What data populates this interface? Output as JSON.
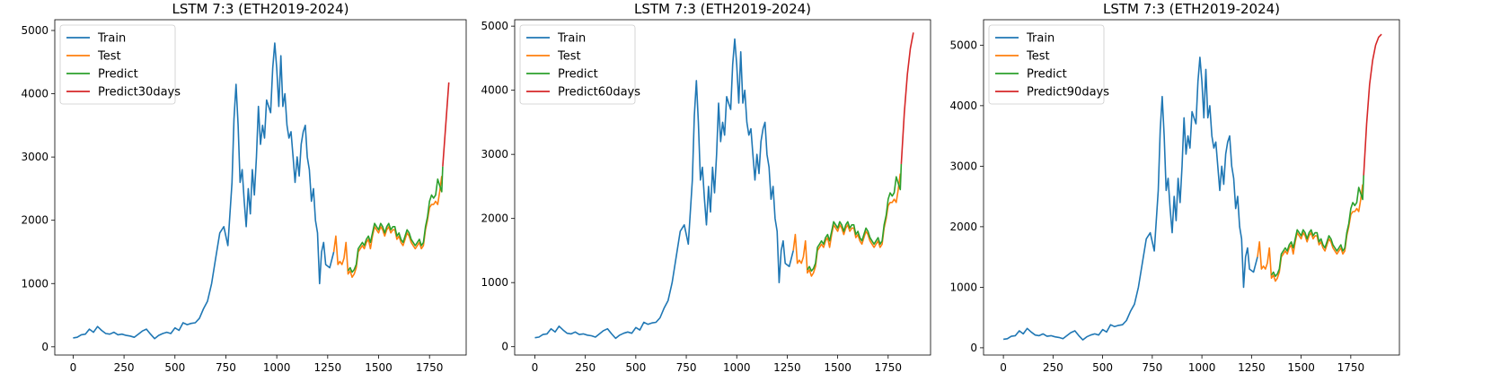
{
  "colors": {
    "train": "#1f77b4",
    "test": "#ff7f0e",
    "predict": "#2ca02c",
    "forecast": "#d62728"
  },
  "chart_data": [
    {
      "type": "line",
      "title": "LSTM 7:3 (ETH2019-2024)",
      "xlim": [
        -90,
        1930
      ],
      "ylim": [
        -130,
        5170
      ],
      "xticks": [
        0,
        250,
        500,
        750,
        1000,
        1250,
        1500,
        1750
      ],
      "yticks": [
        0,
        1000,
        2000,
        3000,
        4000,
        5000
      ],
      "legend": {
        "position": "top-left",
        "entries": [
          "Train",
          "Test",
          "Predict",
          "Predict30days"
        ]
      },
      "grid": false,
      "forecast": {
        "x": [
          1815,
          1825,
          1835,
          1845
        ],
        "y": [
          2850,
          3300,
          3750,
          4180
        ]
      }
    },
    {
      "type": "line",
      "title": "LSTM 7:3 (ETH2019-2024)",
      "xlim": [
        -100,
        1960
      ],
      "ylim": [
        -130,
        5100
      ],
      "xticks": [
        0,
        250,
        500,
        750,
        1000,
        1250,
        1500,
        1750
      ],
      "yticks": [
        0,
        1000,
        2000,
        3000,
        4000,
        5000
      ],
      "legend": {
        "position": "top-left",
        "entries": [
          "Train",
          "Test",
          "Predict",
          "Predict60days"
        ]
      },
      "grid": false,
      "forecast": {
        "x": [
          1815,
          1830,
          1845,
          1860,
          1875
        ],
        "y": [
          2850,
          3650,
          4250,
          4650,
          4900
        ]
      }
    },
    {
      "type": "line",
      "title": "LSTM 7:3 (ETH2019-2024)",
      "xlim": [
        -100,
        1995
      ],
      "ylim": [
        -120,
        5420
      ],
      "xticks": [
        0,
        250,
        500,
        750,
        1000,
        1250,
        1500,
        1750
      ],
      "yticks": [
        0,
        1000,
        2000,
        3000,
        4000,
        5000
      ],
      "legend": {
        "position": "top-left",
        "entries": [
          "Train",
          "Test",
          "Predict",
          "Predict90days"
        ]
      },
      "grid": false,
      "forecast": {
        "x": [
          1815,
          1830,
          1845,
          1860,
          1875,
          1890,
          1905
        ],
        "y": [
          2850,
          3700,
          4350,
          4750,
          5000,
          5130,
          5180
        ]
      }
    }
  ],
  "series_data": {
    "train": {
      "x": [
        0,
        20,
        40,
        60,
        80,
        100,
        120,
        140,
        160,
        180,
        200,
        220,
        240,
        260,
        280,
        300,
        320,
        340,
        360,
        380,
        400,
        420,
        440,
        460,
        480,
        500,
        520,
        540,
        560,
        580,
        600,
        620,
        640,
        660,
        680,
        700,
        720,
        740,
        760,
        780,
        790,
        800,
        810,
        820,
        830,
        840,
        850,
        860,
        870,
        880,
        890,
        900,
        910,
        920,
        930,
        940,
        950,
        960,
        970,
        980,
        990,
        1000,
        1010,
        1020,
        1030,
        1040,
        1050,
        1060,
        1070,
        1080,
        1090,
        1100,
        1110,
        1120,
        1130,
        1140,
        1150,
        1160,
        1170,
        1180,
        1190,
        1200,
        1210,
        1220,
        1230,
        1240,
        1260,
        1280
      ],
      "y": [
        140,
        150,
        190,
        200,
        280,
        230,
        320,
        260,
        210,
        200,
        230,
        190,
        200,
        180,
        170,
        150,
        200,
        250,
        280,
        200,
        130,
        180,
        210,
        230,
        210,
        300,
        260,
        380,
        350,
        370,
        380,
        450,
        600,
        720,
        1000,
        1400,
        1800,
        1900,
        1600,
        2600,
        3600,
        4150,
        3500,
        2600,
        2800,
        2300,
        1900,
        2500,
        2100,
        2800,
        2400,
        3000,
        3800,
        3200,
        3500,
        3300,
        3900,
        3800,
        3700,
        4400,
        4800,
        4400,
        3800,
        4600,
        3800,
        4000,
        3500,
        3300,
        3400,
        3000,
        2600,
        3000,
        2700,
        3200,
        3400,
        3500,
        3000,
        2800,
        2300,
        2500,
        2000,
        1800,
        1000,
        1500,
        1650,
        1300,
        1250,
        1500
      ]
    },
    "test": {
      "x": [
        1280,
        1290,
        1300,
        1310,
        1320,
        1330,
        1340,
        1350,
        1360,
        1370,
        1380,
        1390,
        1400,
        1410,
        1420,
        1430,
        1440,
        1450,
        1460,
        1470,
        1480,
        1490,
        1500,
        1510,
        1520,
        1530,
        1540,
        1550,
        1560,
        1570,
        1580,
        1590,
        1600,
        1610,
        1620,
        1630,
        1640,
        1650,
        1660,
        1670,
        1680,
        1690,
        1700,
        1710,
        1720,
        1730,
        1740,
        1750,
        1760,
        1770,
        1780,
        1790,
        1800,
        1810
      ],
      "y": [
        1500,
        1750,
        1300,
        1350,
        1300,
        1400,
        1650,
        1150,
        1200,
        1100,
        1150,
        1250,
        1500,
        1550,
        1600,
        1550,
        1650,
        1700,
        1550,
        1750,
        1900,
        1850,
        1800,
        1900,
        1850,
        1750,
        1850,
        1900,
        1800,
        1850,
        1850,
        1700,
        1750,
        1650,
        1600,
        1700,
        1800,
        1750,
        1650,
        1600,
        1550,
        1600,
        1650,
        1550,
        1600,
        1850,
        2000,
        2200,
        2250,
        2250,
        2300,
        2250,
        2450,
        2700
      ]
    },
    "predict": {
      "x": [
        1350,
        1360,
        1370,
        1380,
        1390,
        1400,
        1410,
        1420,
        1430,
        1440,
        1450,
        1460,
        1470,
        1480,
        1490,
        1500,
        1510,
        1520,
        1530,
        1540,
        1550,
        1560,
        1570,
        1580,
        1590,
        1600,
        1610,
        1620,
        1630,
        1640,
        1650,
        1660,
        1670,
        1680,
        1690,
        1700,
        1710,
        1720,
        1730,
        1740,
        1750,
        1760,
        1770,
        1780,
        1790,
        1800,
        1810,
        1815
      ],
      "y": [
        1200,
        1250,
        1180,
        1220,
        1300,
        1550,
        1600,
        1650,
        1600,
        1700,
        1750,
        1650,
        1800,
        1950,
        1900,
        1850,
        1950,
        1900,
        1800,
        1900,
        1950,
        1850,
        1900,
        1900,
        1750,
        1800,
        1700,
        1650,
        1750,
        1850,
        1800,
        1700,
        1650,
        1600,
        1650,
        1700,
        1600,
        1650,
        1900,
        2050,
        2300,
        2400,
        2350,
        2400,
        2650,
        2550,
        2450,
        2850
      ]
    }
  }
}
